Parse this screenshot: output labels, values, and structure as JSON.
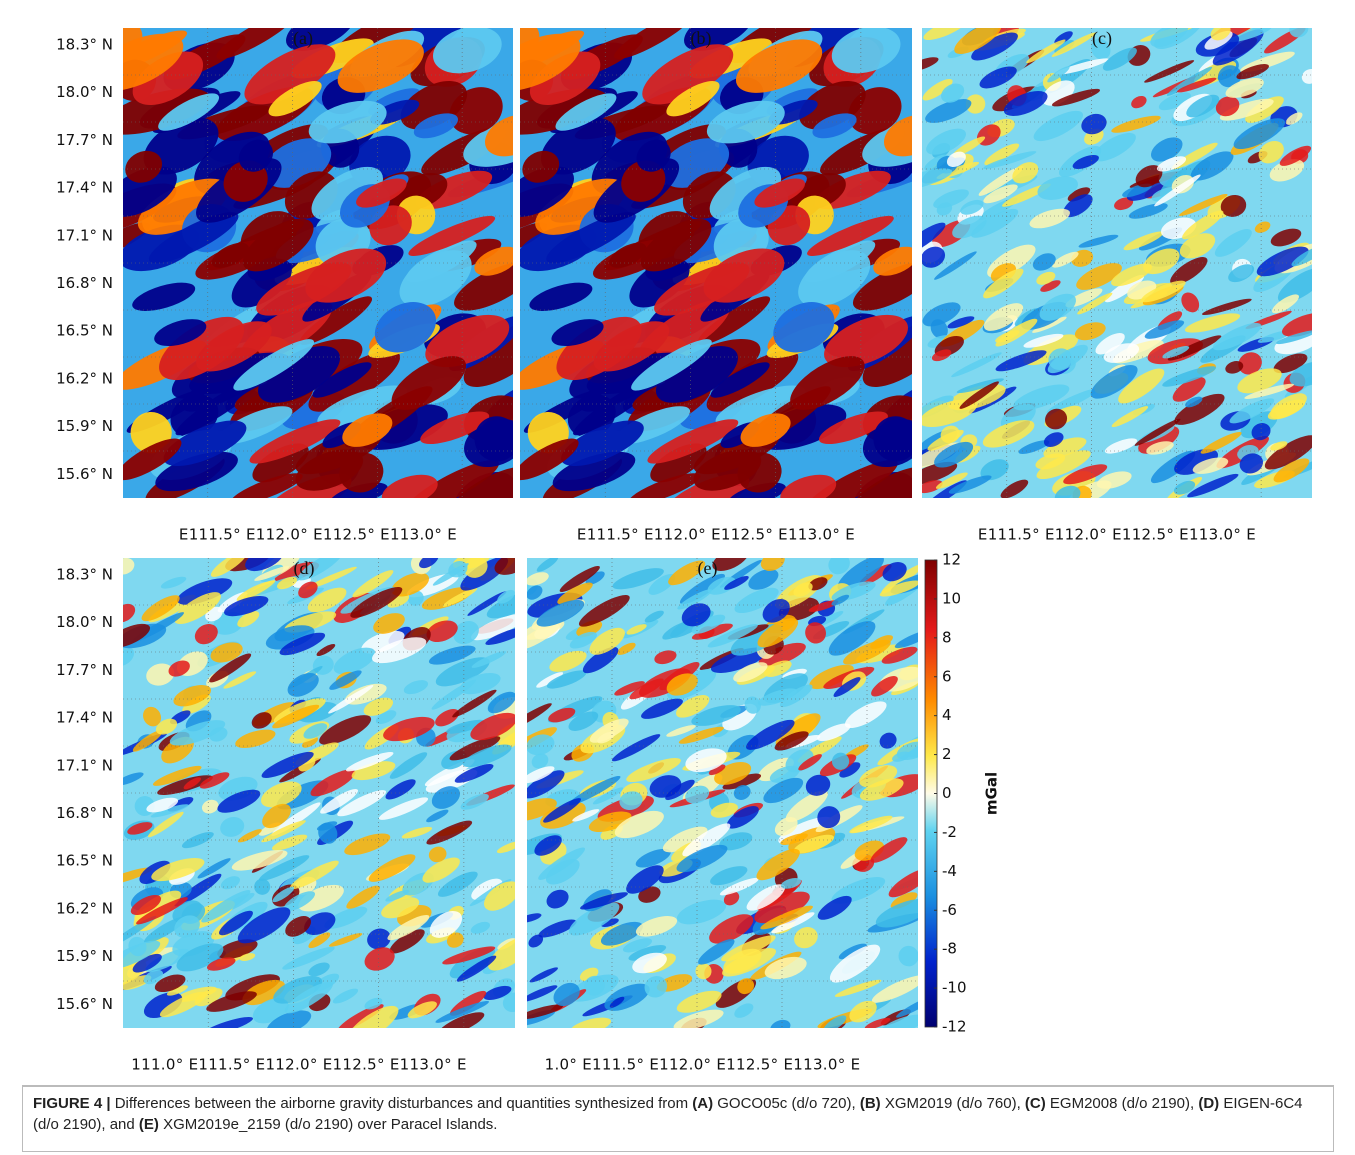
{
  "figure": {
    "y_ticks": [
      "18.3° N",
      "18.0° N",
      "17.7° N",
      "17.4° N",
      "17.1° N",
      "16.8° N",
      "16.5° N",
      "16.2° N",
      "15.9° N",
      "15.6° N"
    ],
    "panels": [
      {
        "label": "(a)",
        "x_label": "E111.5° E112.0° E112.5° E113.0° E",
        "style": "strong"
      },
      {
        "label": "(b)",
        "x_label": "E111.5° E112.0° E112.5° E113.0° E",
        "style": "strong"
      },
      {
        "label": "(c)",
        "x_label": "E111.5° E112.0° E112.5° E113.0° E",
        "style": "light"
      },
      {
        "label": "(d)",
        "x_label": "111.0° E111.5° E112.0° E112.5° E113.0° E",
        "style": "light"
      },
      {
        "label": "(e)",
        "x_label": "1.0° E111.5° E112.0° E112.5° E113.0° E",
        "style": "light"
      }
    ],
    "colorbar": {
      "ticks": [
        12,
        10,
        8,
        6,
        4,
        2,
        0,
        -2,
        -4,
        -6,
        -8,
        -10,
        -12
      ],
      "range": [
        -12,
        12
      ],
      "label": "mGal"
    },
    "caption": [
      {
        "text": "FIGURE 4 |",
        "bold": true
      },
      {
        "text": " Differences between the airborne gravity disturbances and quantities synthesized from ",
        "bold": false
      },
      {
        "text": "(A)",
        "bold": true
      },
      {
        "text": " GOCO05c (d/o 720), ",
        "bold": false
      },
      {
        "text": "(B)",
        "bold": true
      },
      {
        "text": " XGM2019 (d/o 760), ",
        "bold": false
      },
      {
        "text": "(C)",
        "bold": true
      },
      {
        "text": " EGM2008 (d/o 2190), ",
        "bold": false
      },
      {
        "text": "(D)",
        "bold": true
      },
      {
        "text": " EIGEN-6C4 (d/o 2190), and ",
        "bold": false
      },
      {
        "text": "(E)",
        "bold": true
      },
      {
        "text": " XGM2019e_2159 (d/o 2190) over Paracel Islands.",
        "bold": false
      }
    ]
  }
}
